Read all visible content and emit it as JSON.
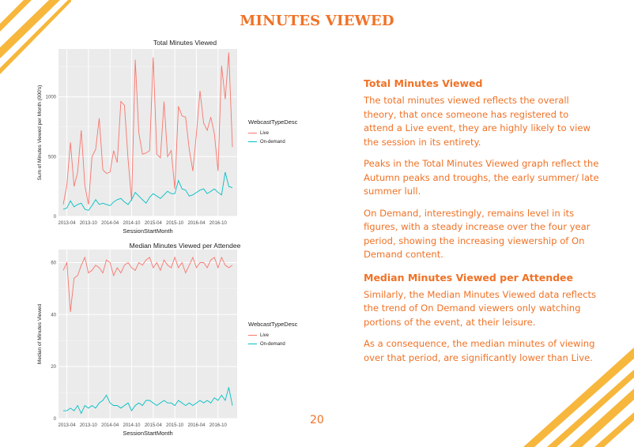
{
  "page": {
    "title": "MINUTES VIEWED",
    "page_number": "20",
    "accent_color": "#f07226",
    "stripe_color": "#f6b73c"
  },
  "text": {
    "section1": {
      "heading": "Total Minutes Viewed",
      "paragraphs": [
        "The total minutes viewed reflects the overall theory, that once someone has registered to attend a Live event, they are highly likely to view the session in its entirety.",
        "Peaks in the Total Minutes Viewed graph reflect the Autumn peaks and troughs, the early summer/ late summer lull.",
        "On Demand, interestingly, remains level in its figures, with a steady increase over the four year period, showing the increasing viewership of On Demand content."
      ]
    },
    "section2": {
      "heading": "Median Minutes Viewed per Attendee",
      "paragraphs": [
        "Similarly, the Median Minutes Viewed data reflects the trend of On Demand viewers only watching portions of the event, at their leisure.",
        "As a consequence, the median minutes of viewing over that period, are significantly lower than Live."
      ]
    }
  },
  "chart_data": [
    {
      "type": "line",
      "title": "Total Minutes Viewed",
      "xlabel": "SessionStartMonth",
      "ylabel": "Sum of Minutes Viewed per Month (000's)",
      "x_ticks": [
        "2013-04",
        "2013-10",
        "2014-04",
        "2014-10",
        "2015-04",
        "2015-10",
        "2016-04",
        "2016-10"
      ],
      "y_ticks": [
        "0",
        "500",
        "1000"
      ],
      "ylim": [
        0,
        1400
      ],
      "grid": true,
      "legend": {
        "title": "WebcastTypeDesc",
        "placement": "right"
      },
      "series": [
        {
          "name": "Live",
          "color": "#f8766d",
          "values": [
            100,
            260,
            620,
            250,
            370,
            720,
            260,
            100,
            500,
            560,
            820,
            390,
            360,
            370,
            550,
            450,
            960,
            930,
            480,
            130,
            1310,
            700,
            520,
            530,
            550,
            1330,
            520,
            490,
            960,
            500,
            550,
            230,
            920,
            840,
            830,
            560,
            380,
            690,
            1050,
            780,
            720,
            830,
            690,
            380,
            1260,
            980,
            1370,
            580
          ]
        },
        {
          "name": "On-demand",
          "color": "#00bfc4",
          "values": [
            60,
            70,
            130,
            80,
            100,
            110,
            60,
            50,
            90,
            140,
            100,
            110,
            100,
            90,
            120,
            140,
            150,
            120,
            100,
            140,
            200,
            170,
            140,
            110,
            160,
            190,
            170,
            150,
            180,
            210,
            190,
            190,
            300,
            230,
            220,
            170,
            180,
            200,
            220,
            230,
            190,
            210,
            230,
            200,
            180,
            370,
            250,
            240
          ]
        }
      ]
    },
    {
      "type": "line",
      "title": "Median Minutes Viewed per Attendee",
      "xlabel": "SessionStartMonth",
      "ylabel": "Median of Minutes Viewed",
      "x_ticks": [
        "2013-04",
        "2013-10",
        "2014-04",
        "2014-10",
        "2015-04",
        "2015-10",
        "2016-04",
        "2016-10"
      ],
      "y_ticks": [
        "0",
        "20",
        "40",
        "60"
      ],
      "ylim": [
        0,
        65
      ],
      "grid": true,
      "legend": {
        "title": "WebcastTypeDesc",
        "placement": "right"
      },
      "series": [
        {
          "name": "Live",
          "color": "#f8766d",
          "values": [
            57,
            60,
            41,
            54,
            55,
            59,
            62,
            56,
            57,
            59,
            58,
            56,
            61,
            60,
            55,
            58,
            56,
            59,
            60,
            58,
            57,
            60,
            59,
            61,
            62,
            58,
            60,
            57,
            61,
            59,
            58,
            62,
            58,
            60,
            56,
            59,
            62,
            58,
            60,
            60,
            58,
            61,
            62,
            58,
            62,
            59,
            58,
            59
          ]
        },
        {
          "name": "On-demand",
          "color": "#00bfc4",
          "values": [
            3,
            3,
            4,
            3,
            5,
            2,
            5,
            4,
            5,
            4,
            6,
            7,
            9,
            6,
            5,
            5,
            4,
            5,
            6,
            3,
            5,
            6,
            5,
            7,
            7,
            6,
            5,
            6,
            7,
            6,
            6,
            5,
            7,
            6,
            5,
            6,
            5,
            6,
            7,
            6,
            7,
            6,
            8,
            7,
            9,
            7,
            12,
            5
          ]
        }
      ]
    }
  ]
}
